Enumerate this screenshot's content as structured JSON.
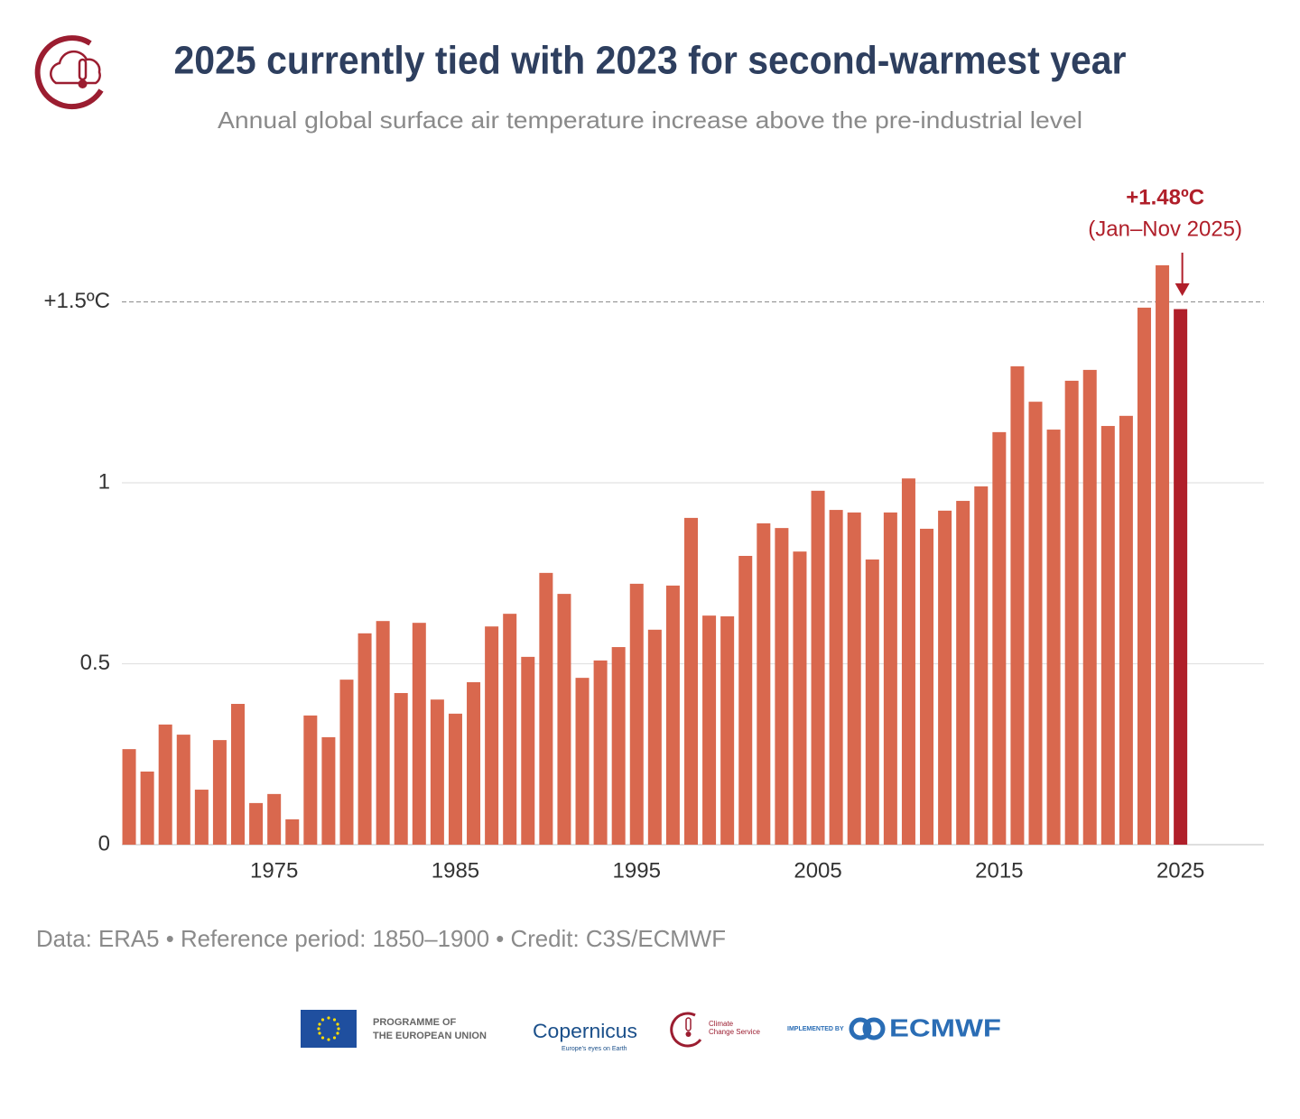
{
  "chart_data": {
    "type": "bar",
    "title": "2025 currently tied with 2023 for second-warmest year",
    "subtitle": "Annual global surface air temperature increase above the pre-industrial level",
    "x": [
      1967,
      1968,
      1969,
      1970,
      1971,
      1972,
      1973,
      1974,
      1975,
      1976,
      1977,
      1978,
      1979,
      1980,
      1981,
      1982,
      1983,
      1984,
      1985,
      1986,
      1987,
      1988,
      1989,
      1990,
      1991,
      1992,
      1993,
      1994,
      1995,
      1996,
      1997,
      1998,
      1999,
      2000,
      2001,
      2002,
      2003,
      2004,
      2005,
      2006,
      2007,
      2008,
      2009,
      2010,
      2011,
      2012,
      2013,
      2014,
      2015,
      2016,
      2017,
      2018,
      2019,
      2020,
      2021,
      2022,
      2023,
      2024,
      2025
    ],
    "values": [
      0.264,
      0.202,
      0.332,
      0.304,
      0.152,
      0.289,
      0.389,
      0.115,
      0.14,
      0.07,
      0.357,
      0.297,
      0.456,
      0.584,
      0.618,
      0.419,
      0.613,
      0.401,
      0.362,
      0.449,
      0.603,
      0.638,
      0.519,
      0.751,
      0.693,
      0.461,
      0.509,
      0.546,
      0.721,
      0.594,
      0.716,
      0.903,
      0.633,
      0.631,
      0.798,
      0.888,
      0.875,
      0.81,
      0.978,
      0.925,
      0.918,
      0.788,
      0.918,
      1.012,
      0.873,
      0.923,
      0.95,
      0.99,
      1.14,
      1.322,
      1.224,
      1.147,
      1.282,
      1.312,
      1.157,
      1.185,
      1.484,
      1.601,
      1.48
    ],
    "colors": [
      "#d9684e",
      "#d9684e",
      "#d9684e",
      "#d9684e",
      "#d9684e",
      "#d9684e",
      "#d9684e",
      "#d9684e",
      "#d9684e",
      "#d9684e",
      "#d9684e",
      "#d9684e",
      "#d9684e",
      "#d9684e",
      "#d9684e",
      "#d9684e",
      "#d9684e",
      "#d9684e",
      "#d9684e",
      "#d9684e",
      "#d9684e",
      "#d9684e",
      "#d9684e",
      "#d9684e",
      "#d9684e",
      "#d9684e",
      "#d9684e",
      "#d9684e",
      "#d9684e",
      "#d9684e",
      "#d9684e",
      "#d9684e",
      "#d9684e",
      "#d9684e",
      "#d9684e",
      "#d9684e",
      "#d9684e",
      "#d9684e",
      "#d9684e",
      "#d9684e",
      "#d9684e",
      "#d9684e",
      "#d9684e",
      "#d9684e",
      "#d9684e",
      "#d9684e",
      "#d9684e",
      "#d9684e",
      "#d9684e",
      "#d9684e",
      "#d9684e",
      "#d9684e",
      "#d9684e",
      "#d9684e",
      "#d9684e",
      "#d9684e",
      "#d9684e",
      "#d9684e",
      "#b01f2a"
    ],
    "xlim": [
      1966.6,
      2029.6
    ],
    "xticks": [
      1975,
      1985,
      1995,
      2005,
      2015,
      2025
    ],
    "ylim": [
      0,
      1.75
    ],
    "yticks": [
      0,
      0.5,
      1,
      {
        "value": 1.5,
        "label": "+1.5ºC"
      }
    ],
    "grid": true,
    "annotation": {
      "text": "+1.48ºC",
      "subtext": "(Jan–Nov 2025)",
      "color": "#b01f2a"
    },
    "source": "Data: ERA5 • Reference period: 1850–1900 • Credit: C3S/ECMWF"
  },
  "footer": {
    "eu_line1": "PROGRAMME OF",
    "eu_line2": "THE EUROPEAN UNION",
    "copernicus": "Copernicus",
    "copernicus_tagline": "Europe's eyes on Earth",
    "c3s_line1": "Climate",
    "c3s_line2": "Change Service",
    "implemented": "IMPLEMENTED BY",
    "ecmwf": "ECMWF"
  }
}
